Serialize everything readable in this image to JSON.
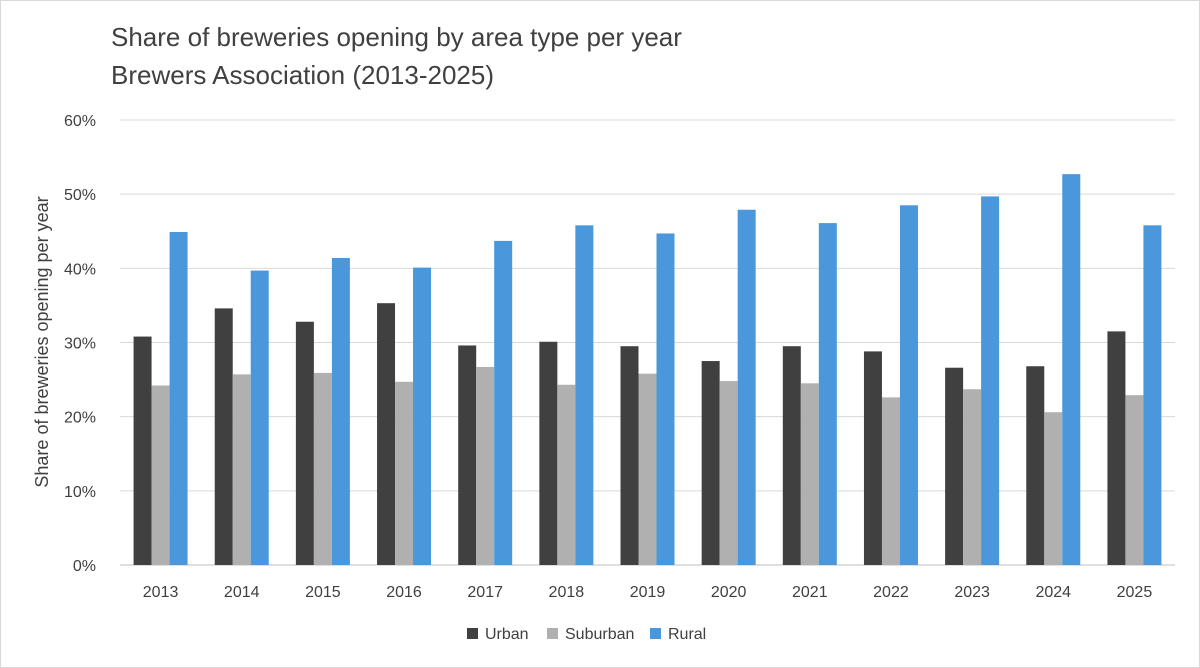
{
  "chart_data": {
    "type": "bar",
    "title": "Share of breweries opening by area type per year",
    "subtitle": "Brewers Association (2013-2025)",
    "xlabel": "",
    "ylabel": "Share of breweries opening per year",
    "ylim": [
      0,
      60
    ],
    "yticks": [
      "0%",
      "10%",
      "20%",
      "30%",
      "40%",
      "50%",
      "60%"
    ],
    "grid": true,
    "legend_position": "bottom",
    "categories": [
      "2013",
      "2014",
      "2015",
      "2016",
      "2017",
      "2018",
      "2019",
      "2020",
      "2021",
      "2022",
      "2023",
      "2024",
      "2025"
    ],
    "series": [
      {
        "name": "Urban",
        "color": "#404040",
        "values": [
          30.8,
          34.6,
          32.8,
          35.3,
          29.6,
          30.1,
          29.5,
          27.5,
          29.5,
          28.8,
          26.6,
          26.8,
          31.5
        ]
      },
      {
        "name": "Suburban",
        "color": "#b0b0b0",
        "values": [
          24.2,
          25.7,
          25.9,
          24.7,
          26.7,
          24.3,
          25.8,
          24.8,
          24.5,
          22.6,
          23.7,
          20.6,
          22.9
        ]
      },
      {
        "name": "Rural",
        "color": "#4a97dc",
        "values": [
          44.9,
          39.7,
          41.4,
          40.1,
          43.7,
          45.8,
          44.7,
          47.9,
          46.1,
          48.5,
          49.7,
          52.7,
          45.8
        ]
      }
    ]
  }
}
